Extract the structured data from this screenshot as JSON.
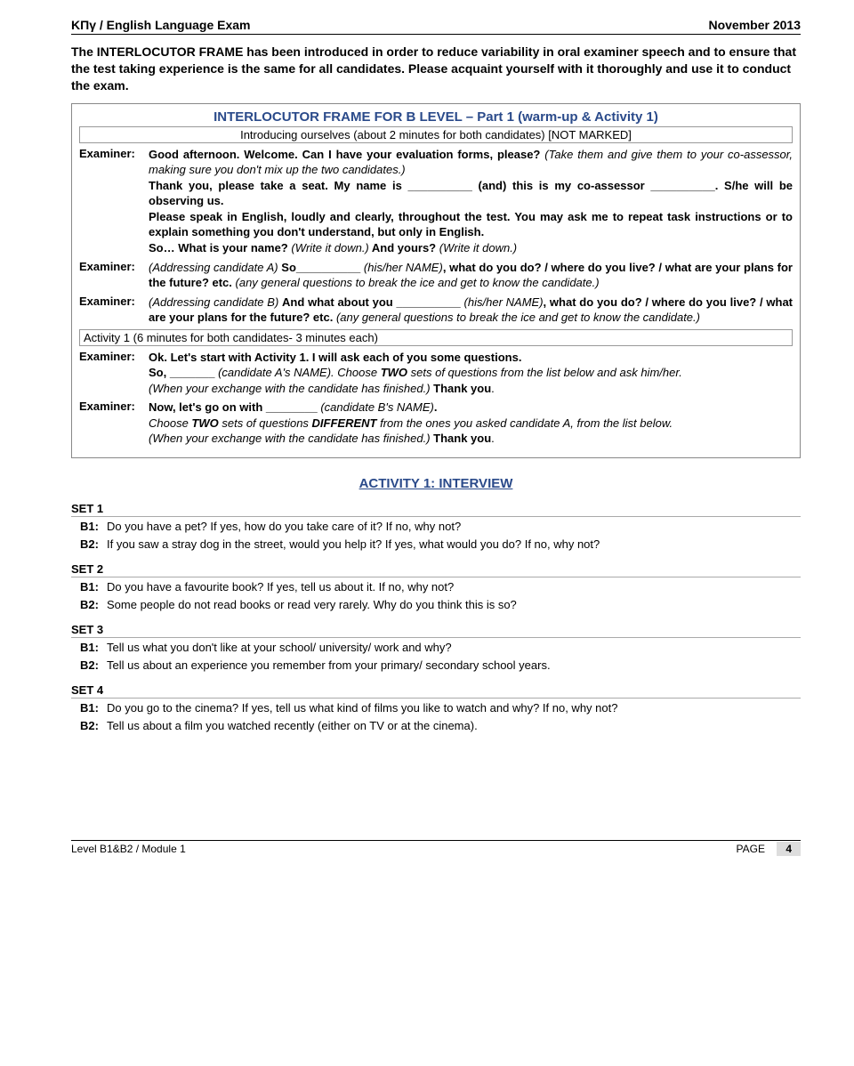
{
  "header": {
    "left": "ΚΠγ / English Language Exam",
    "right": "November 2013"
  },
  "intro": "The INTERLOCUTOR FRAME has been introduced in order to reduce variability in oral examiner speech and to ensure that the test taking experience is the same for all candidates. Please acquaint yourself with it thoroughly and use it to conduct the exam.",
  "frame": {
    "title": "INTERLOCUTOR FRAME FOR B LEVEL – Part 1 (warm-up & Activity 1)",
    "sub1": "Introducing ourselves (about 2 minutes for both candidates) [NOT MARKED]",
    "ex1": {
      "p1_b1": "Good afternoon. Welcome. Can I have your evaluation forms, please?",
      "p1_i1": " (Take them and give them to your co-assessor, making sure you don't mix up the two candidates.)",
      "p2_b1": "Thank you, please take a seat. My name is __________ (and) this is my co-assessor __________",
      "p2_b2": ". S/he will be observing us.",
      "p3": "Please speak in English, loudly and clearly, throughout the test. You may ask me to repeat task instructions or to explain something you don't understand, but only in English.",
      "p4_b1": "So… What is your name?",
      "p4_i1": " (Write it down.)",
      "p4_b2": " And yours?",
      "p4_i2": " (Write it down.)"
    },
    "ex2": {
      "i1": "(Addressing candidate A) ",
      "b1": "So__________ ",
      "i2": "(his/her NAME)",
      "b2": ", what do you do? / where do you live? / what are your plans for the future? etc.",
      "i3": " (any general questions to break the ice and get to know the candidate.)"
    },
    "ex3": {
      "i1": "(Addressing candidate B) ",
      "b1": "And what about you __________ ",
      "i2": "(his/her NAME)",
      "b2": ", what do you do? / where do you live? / what are your plans for the future?  etc.",
      "i3": " (any general questions to break the ice and get to know the candidate.)"
    },
    "sub2": "Activity 1 (6 minutes for both candidates- 3 minutes each)",
    "ex4": {
      "b1": "Ok. Let's start with Activity 1. I will ask each of you some questions.",
      "b2": "So, _______ ",
      "i1": "(candidate A's NAME). ",
      "mix": "Choose ",
      "bi1": "TWO",
      "mix2": " sets of questions from the list below and ask him/her.",
      "i2": "(When your exchange with the candidate has finished.) ",
      "b3": "Thank you",
      "dot": "."
    },
    "ex5": {
      "b1": "Now, let's go on with ________ ",
      "i1": "(candidate B's NAME)",
      "b2": ".",
      "mix1": "Choose ",
      "bi1": "TWO",
      "mix2": " sets of questions ",
      "bi2": "DIFFERENT",
      "mix3": " from the ones you asked candidate A, from the list below.",
      "i2": "(When your exchange with the candidate has finished.) ",
      "b3": "Thank you",
      "dot": "."
    }
  },
  "activity_title": "ACTIVITY 1: INTERVIEW",
  "sets": [
    {
      "head": "SET 1",
      "q": [
        {
          "l": "B1:",
          "t": "Do you have a pet? If yes, how do you take care of it? If no, why not?"
        },
        {
          "l": "B2:",
          "t": "If you saw a stray dog in the street, would you help it? If yes, what would you do? If no, why not?"
        }
      ]
    },
    {
      "head": "SET 2",
      "q": [
        {
          "l": "B1:",
          "t": "Do you have a favourite book? If yes, tell us about it. If no, why not?"
        },
        {
          "l": "B2:",
          "t": "Some people do not read books or read very rarely. Why do you think this is so?"
        }
      ]
    },
    {
      "head": "SET 3",
      "q": [
        {
          "l": "B1:",
          "t": "Tell us what you don't like at your school/ university/ work and why?"
        },
        {
          "l": "B2:",
          "t": "Tell us about an experience you remember from your primary/ secondary school years."
        }
      ]
    },
    {
      "head": "SET 4",
      "q": [
        {
          "l": "B1:",
          "t": "Do you go to the cinema? If yes, tell us what kind of films you like to watch and why? If no, why not?"
        },
        {
          "l": "B2:",
          "t": "Tell us about a film you watched recently (either on TV or at the cinema)."
        }
      ]
    }
  ],
  "footer": {
    "left": "Level B1&B2 / Module 1",
    "page_label": "PAGE",
    "page_num": "4"
  }
}
